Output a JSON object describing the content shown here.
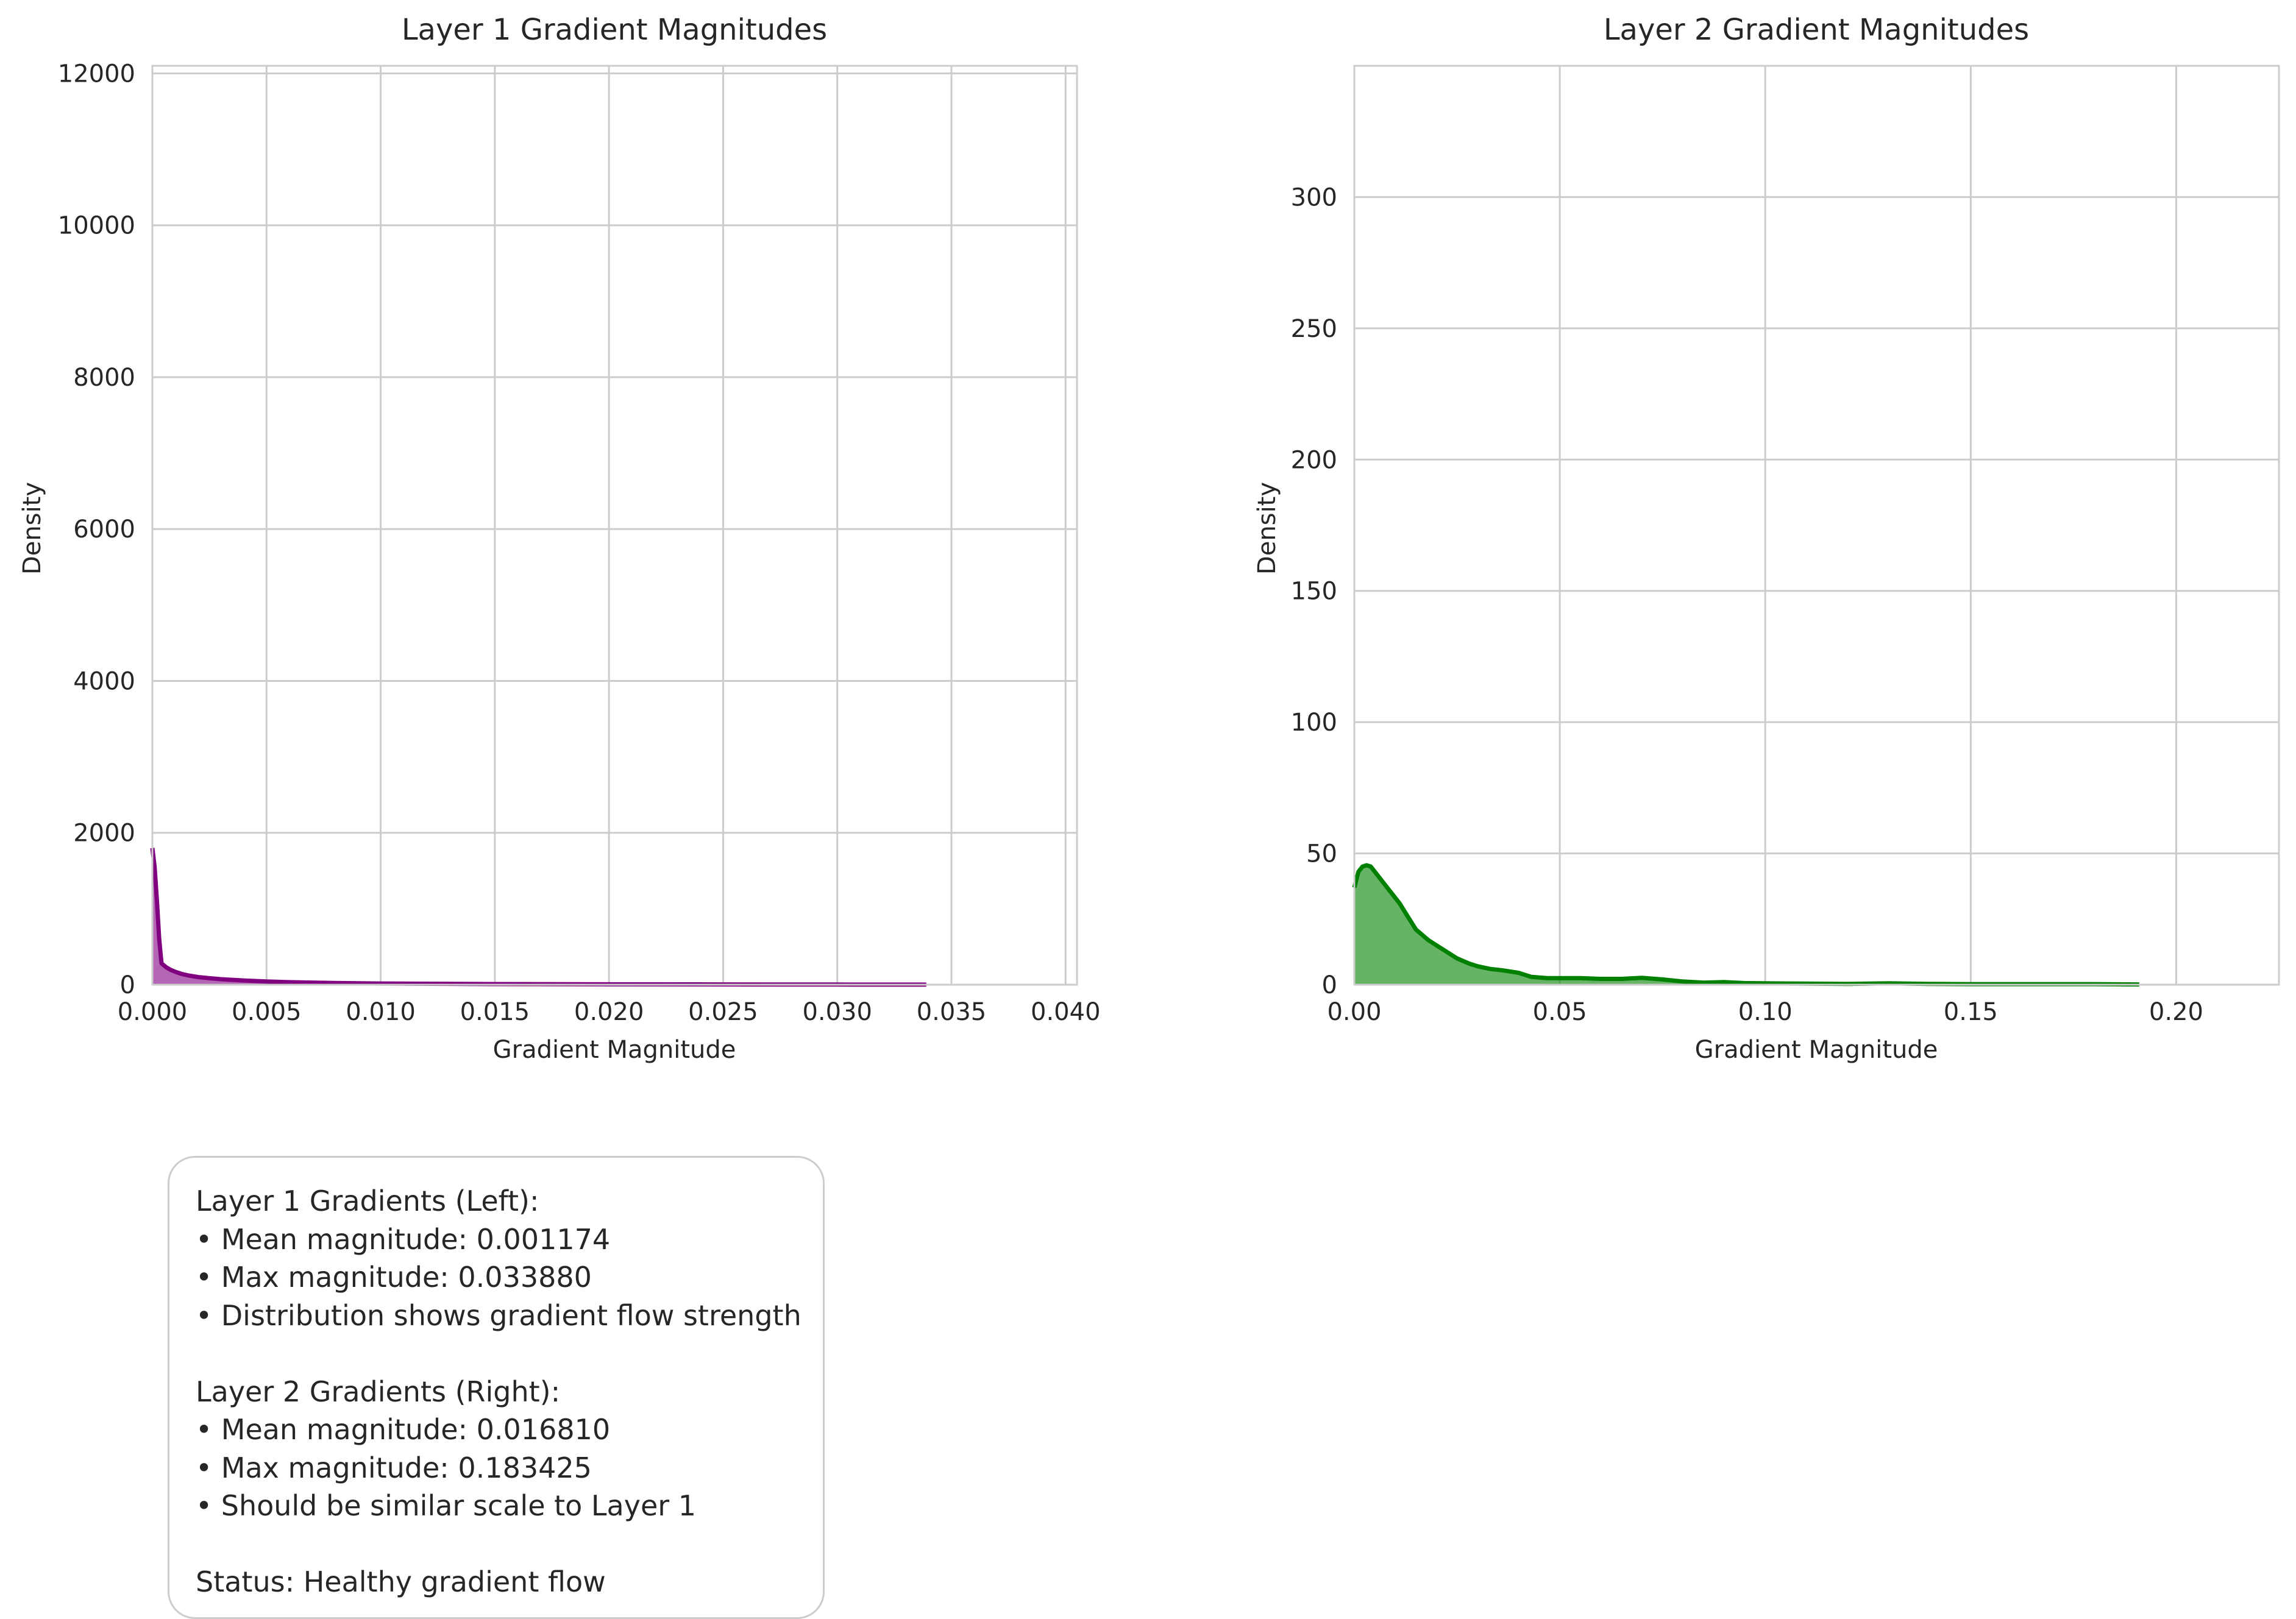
{
  "chart_data": [
    {
      "type": "area",
      "title": "Layer 1 Gradient Magnitudes",
      "xlabel": "Gradient Magnitude",
      "ylabel": "Density",
      "xlim": [
        0,
        0.0405
      ],
      "ylim": [
        0,
        12100
      ],
      "x_ticks": [
        0,
        0.005,
        0.01,
        0.015,
        0.02,
        0.025,
        0.03,
        0.035,
        0.04
      ],
      "x_tick_labels": [
        "0.000",
        "0.005",
        "0.010",
        "0.015",
        "0.020",
        "0.025",
        "0.030",
        "0.035",
        "0.040"
      ],
      "y_ticks": [
        0,
        2000,
        4000,
        6000,
        8000,
        10000,
        12000
      ],
      "y_tick_labels": [
        "0",
        "2000",
        "4000",
        "6000",
        "8000",
        "10000",
        "12000"
      ],
      "grid": true,
      "color": "#800080",
      "series": [
        {
          "x": [
            0,
            0.0001,
            0.0002,
            0.0003,
            0.0004,
            0.0006,
            0.0008,
            0.001,
            0.0013,
            0.0016,
            0.002,
            0.0025,
            0.003,
            0.004,
            0.005,
            0.006,
            0.008,
            0.01,
            0.015,
            0.02,
            0.025,
            0.03,
            0.0339
          ],
          "y": [
            1800,
            1550,
            1100,
            600,
            280,
            230,
            195,
            170,
            140,
            120,
            100,
            85,
            72,
            55,
            42,
            33,
            22,
            15,
            8,
            5,
            3,
            2,
            1
          ]
        }
      ]
    },
    {
      "type": "area",
      "title": "Layer 2 Gradient Magnitudes",
      "xlabel": "Gradient Magnitude",
      "ylabel": "Density",
      "xlim": [
        0,
        0.225
      ],
      "ylim": [
        0,
        350
      ],
      "x_ticks": [
        0,
        0.05,
        0.1,
        0.15,
        0.2
      ],
      "x_tick_labels": [
        "0.00",
        "0.05",
        "0.10",
        "0.15",
        "0.20"
      ],
      "y_ticks": [
        0,
        50,
        100,
        150,
        200,
        250,
        300
      ],
      "y_tick_labels": [
        "0",
        "50",
        "100",
        "150",
        "200",
        "250",
        "300"
      ],
      "grid": true,
      "color": "#008000",
      "series": [
        {
          "x": [
            0,
            0.001,
            0.002,
            0.003,
            0.004,
            0.005,
            0.007,
            0.009,
            0.011,
            0.013,
            0.015,
            0.018,
            0.02,
            0.023,
            0.025,
            0.028,
            0.03,
            0.033,
            0.036,
            0.04,
            0.043,
            0.047,
            0.05,
            0.055,
            0.06,
            0.065,
            0.07,
            0.075,
            0.08,
            0.085,
            0.09,
            0.095,
            0.1,
            0.11,
            0.12,
            0.13,
            0.14,
            0.15,
            0.16,
            0.17,
            0.18,
            0.191
          ],
          "y": [
            37,
            43,
            45,
            45.5,
            45,
            43,
            39,
            35,
            31,
            26,
            21,
            17,
            15,
            12,
            10,
            8,
            7,
            6,
            5.5,
            4.5,
            3,
            2.5,
            2.5,
            2.5,
            2.2,
            2.2,
            2.6,
            2.0,
            1.2,
            0.8,
            1.0,
            0.6,
            0.5,
            0.4,
            0.3,
            0.5,
            0.3,
            0.2,
            0.2,
            0.2,
            0.2,
            0.1
          ]
        }
      ]
    }
  ],
  "info_box": {
    "lines": [
      "Layer 1 Gradients (Left):",
      "• Mean magnitude: 0.001174",
      "• Max magnitude: 0.033880",
      "• Distribution shows gradient flow strength",
      "",
      "Layer 2 Gradients (Right):",
      "• Mean magnitude: 0.016810",
      "• Max magnitude: 0.183425",
      "• Should be similar scale to Layer 1",
      "",
      "Status: Healthy gradient flow"
    ]
  }
}
